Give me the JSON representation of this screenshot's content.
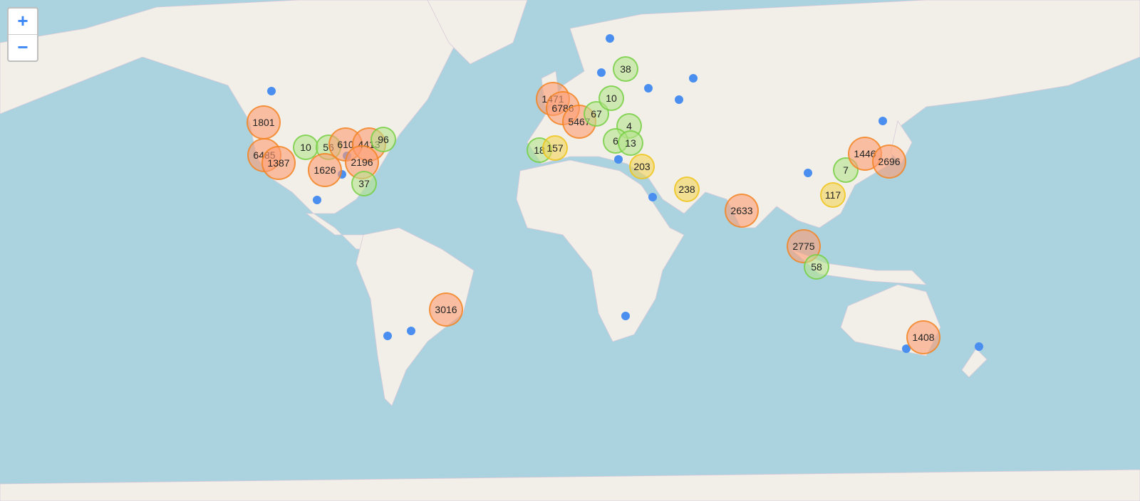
{
  "controls": {
    "zoom_in": "+",
    "zoom_out": "−"
  },
  "colors": {
    "ocean": "#aad3df",
    "land": "#f2efe9",
    "large_cluster": "#f18017",
    "medium_cluster": "#f0c20c",
    "small_cluster": "#6ecc39",
    "marker": "#4a8ef0"
  },
  "clusters": [
    {
      "count": "1801",
      "tier": "large"
    },
    {
      "count": "6485",
      "tier": "large"
    },
    {
      "count": "1387",
      "tier": "large"
    },
    {
      "count": "10",
      "tier": "small"
    },
    {
      "count": "56",
      "tier": "small"
    },
    {
      "count": "610",
      "tier": "large"
    },
    {
      "count": "4413",
      "tier": "large"
    },
    {
      "count": "96",
      "tier": "small"
    },
    {
      "count": "2196",
      "tier": "large"
    },
    {
      "count": "1626",
      "tier": "large"
    },
    {
      "count": "37",
      "tier": "small"
    },
    {
      "count": "1471",
      "tier": "large"
    },
    {
      "count": "6786",
      "tier": "large"
    },
    {
      "count": "5467",
      "tier": "large"
    },
    {
      "count": "67",
      "tier": "small"
    },
    {
      "count": "10",
      "tier": "small"
    },
    {
      "count": "38",
      "tier": "small"
    },
    {
      "count": "4",
      "tier": "small"
    },
    {
      "count": "6",
      "tier": "small"
    },
    {
      "count": "13",
      "tier": "small"
    },
    {
      "count": "18",
      "tier": "small"
    },
    {
      "count": "157",
      "tier": "medium"
    },
    {
      "count": "203",
      "tier": "medium"
    },
    {
      "count": "238",
      "tier": "medium"
    },
    {
      "count": "2633",
      "tier": "large"
    },
    {
      "count": "2775",
      "tier": "large"
    },
    {
      "count": "58",
      "tier": "small"
    },
    {
      "count": "7",
      "tier": "small"
    },
    {
      "count": "117",
      "tier": "medium"
    },
    {
      "count": "1446",
      "tier": "large"
    },
    {
      "count": "2696",
      "tier": "large"
    },
    {
      "count": "3016",
      "tier": "large"
    },
    {
      "count": "1408",
      "tier": "large"
    }
  ],
  "single_markers": 18
}
